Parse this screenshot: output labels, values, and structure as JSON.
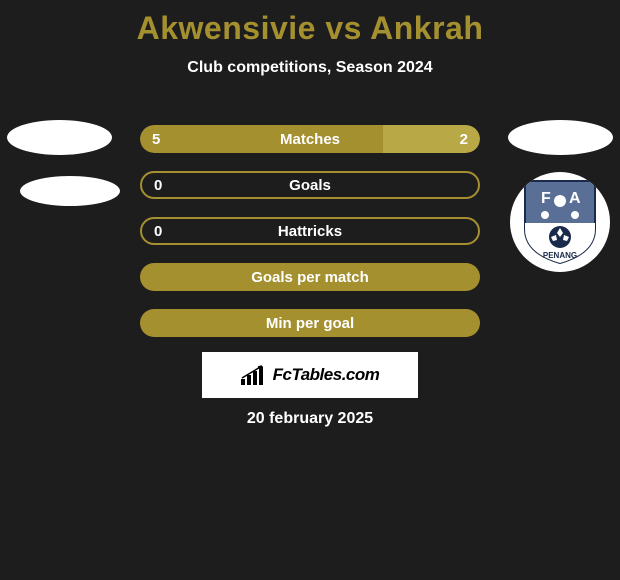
{
  "title": {
    "text": "Akwensivie vs Ankrah",
    "color": "#a59030",
    "fontsize": 32
  },
  "subtitle": {
    "text": "Club competitions, Season 2024",
    "fontsize": 16
  },
  "colors": {
    "accent": "#a59030",
    "accent_light": "#b8a846",
    "bg": "#1d1d1d",
    "white": "#ffffff",
    "black": "#000000"
  },
  "stats": {
    "label_fontsize": 15,
    "value_fontsize": 15,
    "rows": [
      {
        "label": "Matches",
        "left": "5",
        "right": "2",
        "left_pct": 71.4,
        "right_pct": 28.6,
        "mode": "split"
      },
      {
        "label": "Goals",
        "left": "0",
        "right": "",
        "mode": "border"
      },
      {
        "label": "Hattricks",
        "left": "0",
        "right": "",
        "mode": "border"
      },
      {
        "label": "Goals per match",
        "left": "",
        "right": "",
        "mode": "fill"
      },
      {
        "label": "Min per goal",
        "left": "",
        "right": "",
        "mode": "fill"
      }
    ]
  },
  "brand": {
    "text": "FcTables.com",
    "fontsize": 17
  },
  "date": {
    "text": "20 february 2025",
    "fontsize": 16
  },
  "badge": {
    "top_bg": "#5a6f95",
    "bottom_bg": "#ffffff",
    "text_top": "F A",
    "text_bottom": "PENANG"
  }
}
